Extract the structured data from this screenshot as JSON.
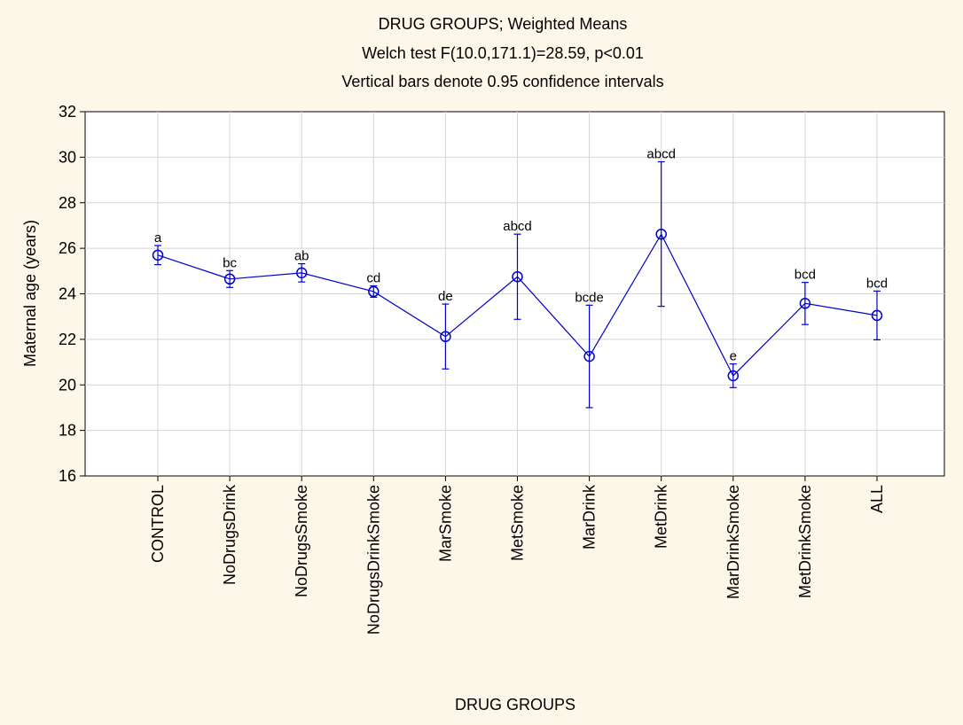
{
  "chart_data": {
    "type": "line",
    "title_lines": [
      "DRUG GROUPS; Weighted Means",
      "Welch test F(10.0,171.1)=28.59, p<0.01",
      "Vertical bars denote 0.95 confidence intervals"
    ],
    "xlabel": "DRUG GROUPS",
    "ylabel": "Maternal age (years)",
    "ylim": [
      16,
      32
    ],
    "yticks": [
      16,
      18,
      20,
      22,
      24,
      26,
      28,
      30,
      32
    ],
    "grid": true,
    "categories": [
      "CONTROL",
      "NoDrugsDrink",
      "NoDrugsSmoke",
      "NoDrugsDrinkSmoke",
      "MarSmoke",
      "MetSmoke",
      "MarDrink",
      "MetDrink",
      "MarDrinkSmoke",
      "MetDrinkSmoke",
      "ALL"
    ],
    "series": [
      {
        "values": [
          25.7,
          24.65,
          24.92,
          24.1,
          22.12,
          24.75,
          21.25,
          26.62,
          20.4,
          23.58,
          23.05
        ],
        "ci_low": [
          25.28,
          24.28,
          24.52,
          23.85,
          20.7,
          22.88,
          19.0,
          23.45,
          19.88,
          22.65,
          21.98
        ],
        "ci_high": [
          26.12,
          25.02,
          25.32,
          24.35,
          23.55,
          26.62,
          23.5,
          29.8,
          20.92,
          24.5,
          24.12
        ],
        "group_labels": [
          "a",
          "bc",
          "ab",
          "cd",
          "de",
          "abcd",
          "bcde",
          "abcd",
          "e",
          "bcd",
          "bcd"
        ],
        "color": "#0000cc"
      }
    ]
  }
}
